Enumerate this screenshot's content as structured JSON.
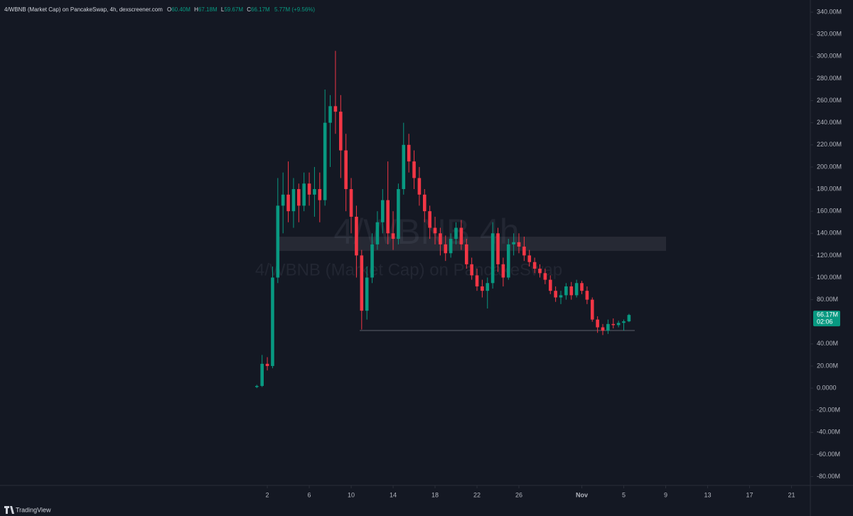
{
  "chart_data": {
    "type": "candlestick",
    "title": "4/WBNB (Market Cap) on PancakeSwap, 4h, dexscreener.com",
    "legend": {
      "o_label": "O",
      "o": "60.40M",
      "h_label": "H",
      "h": "67.18M",
      "l_label": "L",
      "l": "59.67M",
      "c_label": "C",
      "c": "66.17M",
      "change": "5.77M (+9.56%)"
    },
    "watermark": "4/WBNB 4h",
    "watermark_subtitle": "4/WBNB (Market Cap) on PancakeSwap",
    "last_price_label": "66.17M",
    "countdown": "02:06",
    "brand": "TradingView",
    "up_color": "#089981",
    "down_color": "#f23645",
    "xlim": [
      -24.5,
      52.8
    ],
    "xticks": [
      {
        "value": 1,
        "label": "2"
      },
      {
        "value": 5,
        "label": "6"
      },
      {
        "value": 9,
        "label": "10"
      },
      {
        "value": 13,
        "label": "14"
      },
      {
        "value": 17,
        "label": "18"
      },
      {
        "value": 21,
        "label": "22"
      },
      {
        "value": 25,
        "label": "26"
      },
      {
        "value": 31,
        "label": "Nov"
      },
      {
        "value": 35,
        "label": "5"
      },
      {
        "value": 39,
        "label": "9"
      },
      {
        "value": 43,
        "label": "13"
      },
      {
        "value": 47,
        "label": "17"
      },
      {
        "value": 51,
        "label": "21"
      }
    ],
    "ylim": [
      -88,
      351
    ],
    "yticks": [
      {
        "value": 340,
        "label": "340.00M"
      },
      {
        "value": 320,
        "label": "320.00M"
      },
      {
        "value": 300,
        "label": "300.00M"
      },
      {
        "value": 280,
        "label": "280.00M"
      },
      {
        "value": 260,
        "label": "260.00M"
      },
      {
        "value": 240,
        "label": "240.00M"
      },
      {
        "value": 220,
        "label": "220.00M"
      },
      {
        "value": 200,
        "label": "200.00M"
      },
      {
        "value": 180,
        "label": "180.00M"
      },
      {
        "value": 160,
        "label": "160.00M"
      },
      {
        "value": 140,
        "label": "140.00M"
      },
      {
        "value": 120,
        "label": "120.00M"
      },
      {
        "value": 100,
        "label": "100.00M"
      },
      {
        "value": 80,
        "label": "80.00M"
      },
      {
        "value": 40,
        "label": "40.00M"
      },
      {
        "value": 20,
        "label": "20.00M"
      },
      {
        "value": 0,
        "label": "0.0000"
      },
      {
        "value": -20,
        "label": "-20.00M"
      },
      {
        "value": -40,
        "label": "-40.00M"
      },
      {
        "value": -60,
        "label": "-60.00M"
      },
      {
        "value": -80,
        "label": "-80.00M"
      }
    ],
    "last_price": 66.17,
    "candles": [
      {
        "t": 0,
        "o": 1,
        "h": 3,
        "l": 0,
        "c": 2
      },
      {
        "t": 0.5,
        "o": 2,
        "h": 30,
        "l": 1,
        "c": 22
      },
      {
        "t": 1,
        "o": 22,
        "h": 28,
        "l": 16,
        "c": 20
      },
      {
        "t": 1.5,
        "o": 20,
        "h": 110,
        "l": 18,
        "c": 100
      },
      {
        "t": 2,
        "o": 100,
        "h": 190,
        "l": 95,
        "c": 165
      },
      {
        "t": 2.5,
        "o": 165,
        "h": 195,
        "l": 140,
        "c": 175
      },
      {
        "t": 3,
        "o": 175,
        "h": 205,
        "l": 150,
        "c": 160
      },
      {
        "t": 3.5,
        "o": 160,
        "h": 190,
        "l": 145,
        "c": 180
      },
      {
        "t": 4,
        "o": 180,
        "h": 185,
        "l": 150,
        "c": 165
      },
      {
        "t": 4.5,
        "o": 165,
        "h": 195,
        "l": 160,
        "c": 185
      },
      {
        "t": 5,
        "o": 185,
        "h": 195,
        "l": 165,
        "c": 175
      },
      {
        "t": 5.5,
        "o": 175,
        "h": 200,
        "l": 155,
        "c": 180
      },
      {
        "t": 6,
        "o": 180,
        "h": 195,
        "l": 150,
        "c": 170
      },
      {
        "t": 6.5,
        "o": 170,
        "h": 270,
        "l": 165,
        "c": 240
      },
      {
        "t": 7,
        "o": 240,
        "h": 265,
        "l": 200,
        "c": 255
      },
      {
        "t": 7.5,
        "o": 255,
        "h": 305,
        "l": 230,
        "c": 250
      },
      {
        "t": 8,
        "o": 250,
        "h": 265,
        "l": 190,
        "c": 215
      },
      {
        "t": 8.5,
        "o": 215,
        "h": 230,
        "l": 160,
        "c": 180
      },
      {
        "t": 9,
        "o": 180,
        "h": 190,
        "l": 140,
        "c": 155
      },
      {
        "t": 9.5,
        "o": 155,
        "h": 165,
        "l": 100,
        "c": 120
      },
      {
        "t": 10,
        "o": 120,
        "h": 125,
        "l": 53,
        "c": 70
      },
      {
        "t": 10.5,
        "o": 70,
        "h": 110,
        "l": 62,
        "c": 100
      },
      {
        "t": 11,
        "o": 100,
        "h": 140,
        "l": 95,
        "c": 130
      },
      {
        "t": 11.5,
        "o": 130,
        "h": 160,
        "l": 125,
        "c": 150
      },
      {
        "t": 12,
        "o": 150,
        "h": 180,
        "l": 140,
        "c": 170
      },
      {
        "t": 12.5,
        "o": 170,
        "h": 205,
        "l": 130,
        "c": 140
      },
      {
        "t": 13,
        "o": 140,
        "h": 160,
        "l": 125,
        "c": 135
      },
      {
        "t": 13.5,
        "o": 135,
        "h": 185,
        "l": 130,
        "c": 180
      },
      {
        "t": 14,
        "o": 180,
        "h": 240,
        "l": 175,
        "c": 220
      },
      {
        "t": 14.5,
        "o": 220,
        "h": 230,
        "l": 195,
        "c": 205
      },
      {
        "t": 15,
        "o": 205,
        "h": 215,
        "l": 180,
        "c": 190
      },
      {
        "t": 15.5,
        "o": 190,
        "h": 200,
        "l": 165,
        "c": 175
      },
      {
        "t": 16,
        "o": 175,
        "h": 180,
        "l": 150,
        "c": 160
      },
      {
        "t": 16.5,
        "o": 160,
        "h": 165,
        "l": 135,
        "c": 145
      },
      {
        "t": 17,
        "o": 145,
        "h": 155,
        "l": 130,
        "c": 140
      },
      {
        "t": 17.5,
        "o": 140,
        "h": 145,
        "l": 120,
        "c": 130
      },
      {
        "t": 18,
        "o": 130,
        "h": 138,
        "l": 115,
        "c": 122
      },
      {
        "t": 18.5,
        "o": 122,
        "h": 140,
        "l": 118,
        "c": 135
      },
      {
        "t": 19,
        "o": 135,
        "h": 150,
        "l": 130,
        "c": 145
      },
      {
        "t": 19.5,
        "o": 145,
        "h": 152,
        "l": 125,
        "c": 130
      },
      {
        "t": 20,
        "o": 130,
        "h": 135,
        "l": 108,
        "c": 112
      },
      {
        "t": 20.5,
        "o": 112,
        "h": 118,
        "l": 98,
        "c": 102
      },
      {
        "t": 21,
        "o": 102,
        "h": 108,
        "l": 88,
        "c": 92
      },
      {
        "t": 21.5,
        "o": 92,
        "h": 98,
        "l": 82,
        "c": 88
      },
      {
        "t": 22,
        "o": 88,
        "h": 100,
        "l": 72,
        "c": 95
      },
      {
        "t": 22.5,
        "o": 95,
        "h": 150,
        "l": 90,
        "c": 140
      },
      {
        "t": 23,
        "o": 140,
        "h": 145,
        "l": 105,
        "c": 112
      },
      {
        "t": 23.5,
        "o": 112,
        "h": 118,
        "l": 92,
        "c": 100
      },
      {
        "t": 24,
        "o": 100,
        "h": 135,
        "l": 98,
        "c": 130
      },
      {
        "t": 24.5,
        "o": 130,
        "h": 140,
        "l": 120,
        "c": 132
      },
      {
        "t": 25,
        "o": 132,
        "h": 140,
        "l": 122,
        "c": 128
      },
      {
        "t": 25.5,
        "o": 128,
        "h": 137,
        "l": 115,
        "c": 120
      },
      {
        "t": 26,
        "o": 120,
        "h": 125,
        "l": 110,
        "c": 114
      },
      {
        "t": 26.5,
        "o": 114,
        "h": 118,
        "l": 104,
        "c": 108
      },
      {
        "t": 27,
        "o": 108,
        "h": 112,
        "l": 100,
        "c": 104
      },
      {
        "t": 27.5,
        "o": 104,
        "h": 108,
        "l": 94,
        "c": 98
      },
      {
        "t": 28,
        "o": 98,
        "h": 102,
        "l": 85,
        "c": 88
      },
      {
        "t": 28.5,
        "o": 88,
        "h": 92,
        "l": 78,
        "c": 82
      },
      {
        "t": 29,
        "o": 82,
        "h": 88,
        "l": 76,
        "c": 84
      },
      {
        "t": 29.5,
        "o": 84,
        "h": 95,
        "l": 80,
        "c": 92
      },
      {
        "t": 30,
        "o": 92,
        "h": 96,
        "l": 80,
        "c": 84
      },
      {
        "t": 30.5,
        "o": 84,
        "h": 98,
        "l": 82,
        "c": 95
      },
      {
        "t": 31,
        "o": 95,
        "h": 97,
        "l": 85,
        "c": 88
      },
      {
        "t": 31.5,
        "o": 88,
        "h": 92,
        "l": 76,
        "c": 80
      },
      {
        "t": 32,
        "o": 80,
        "h": 82,
        "l": 60,
        "c": 62
      },
      {
        "t": 32.5,
        "o": 62,
        "h": 65,
        "l": 50,
        "c": 55
      },
      {
        "t": 33,
        "o": 55,
        "h": 58,
        "l": 48,
        "c": 52
      },
      {
        "t": 33.5,
        "o": 52,
        "h": 62,
        "l": 49,
        "c": 58
      },
      {
        "t": 34,
        "o": 58,
        "h": 63,
        "l": 54,
        "c": 57
      },
      {
        "t": 34.5,
        "o": 57,
        "h": 61,
        "l": 55,
        "c": 59
      },
      {
        "t": 35,
        "o": 59,
        "h": 62,
        "l": 52,
        "c": 60.4
      },
      {
        "t": 35.5,
        "o": 60.4,
        "h": 67.18,
        "l": 59.67,
        "c": 66.17
      }
    ]
  }
}
